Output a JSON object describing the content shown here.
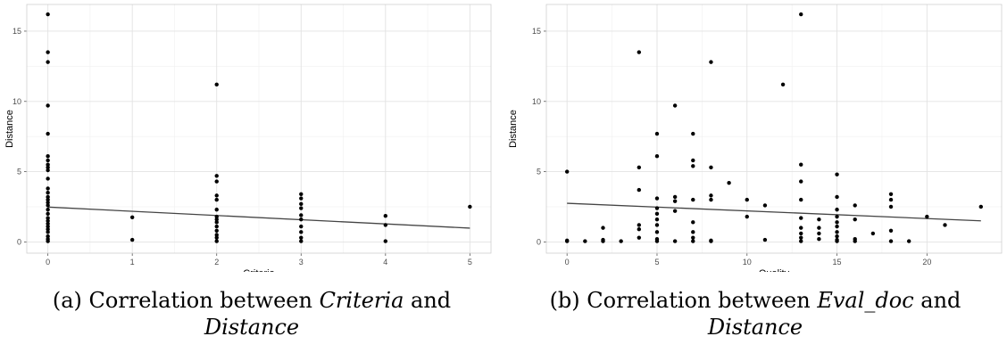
{
  "chart_data": [
    {
      "type": "scatter",
      "id": "a",
      "xlabel": "Criteria",
      "ylabel": "Distance",
      "xlim": [
        -0.25,
        5.25
      ],
      "ylim": [
        -0.8,
        16.9
      ],
      "xticks": [
        0,
        1,
        2,
        3,
        4,
        5
      ],
      "yticks": [
        0,
        5,
        10,
        15
      ],
      "grid": true,
      "points": [
        [
          0,
          16.2
        ],
        [
          0,
          13.5
        ],
        [
          0,
          12.8
        ],
        [
          0,
          9.7
        ],
        [
          0,
          7.7
        ],
        [
          0,
          6.1
        ],
        [
          0,
          5.8
        ],
        [
          0,
          5.5
        ],
        [
          0,
          5.3
        ],
        [
          0,
          5.1
        ],
        [
          0,
          4.5
        ],
        [
          0,
          3.8
        ],
        [
          0,
          3.5
        ],
        [
          0,
          3.2
        ],
        [
          0,
          3.0
        ],
        [
          0,
          2.8
        ],
        [
          0,
          2.6
        ],
        [
          0,
          2.3
        ],
        [
          0,
          2.0
        ],
        [
          0,
          1.7
        ],
        [
          0,
          1.5
        ],
        [
          0,
          1.3
        ],
        [
          0,
          1.1
        ],
        [
          0,
          0.9
        ],
        [
          0,
          0.7
        ],
        [
          0,
          0.4
        ],
        [
          0,
          0.2
        ],
        [
          0,
          0.05
        ],
        [
          1,
          1.75
        ],
        [
          1,
          0.15
        ],
        [
          2,
          11.2
        ],
        [
          2,
          4.7
        ],
        [
          2,
          4.3
        ],
        [
          2,
          3.3
        ],
        [
          2,
          3.0
        ],
        [
          2,
          2.3
        ],
        [
          2,
          1.8
        ],
        [
          2,
          1.6
        ],
        [
          2,
          1.4
        ],
        [
          2,
          1.1
        ],
        [
          2,
          0.8
        ],
        [
          2,
          0.5
        ],
        [
          2,
          0.3
        ],
        [
          2,
          0.05
        ],
        [
          3,
          3.4
        ],
        [
          3,
          3.1
        ],
        [
          3,
          2.7
        ],
        [
          3,
          2.4
        ],
        [
          3,
          1.9
        ],
        [
          3,
          1.6
        ],
        [
          3,
          1.1
        ],
        [
          3,
          0.7
        ],
        [
          3,
          0.3
        ],
        [
          3,
          0.05
        ],
        [
          4,
          1.85
        ],
        [
          4,
          1.2
        ],
        [
          4,
          0.05
        ],
        [
          5,
          2.5
        ]
      ],
      "trend": {
        "x": [
          0,
          5
        ],
        "y": [
          2.48,
          0.98
        ]
      }
    },
    {
      "type": "scatter",
      "id": "b",
      "xlabel": "Quality",
      "ylabel": "Distance",
      "xlim": [
        -1.15,
        24.15
      ],
      "ylim": [
        -0.8,
        16.9
      ],
      "xticks": [
        0,
        5,
        10,
        15,
        20
      ],
      "yticks": [
        0,
        5,
        10,
        15
      ],
      "grid": true,
      "points": [
        [
          0,
          5.0
        ],
        [
          0,
          0.1
        ],
        [
          0,
          0.05
        ],
        [
          1,
          0.05
        ],
        [
          2,
          1.0
        ],
        [
          2,
          0.15
        ],
        [
          2,
          0.05
        ],
        [
          3,
          0.05
        ],
        [
          4,
          13.5
        ],
        [
          4,
          5.3
        ],
        [
          4,
          3.7
        ],
        [
          4,
          1.2
        ],
        [
          4,
          0.9
        ],
        [
          4,
          0.3
        ],
        [
          5,
          7.7
        ],
        [
          5,
          6.1
        ],
        [
          5,
          3.1
        ],
        [
          5,
          2.4
        ],
        [
          5,
          2.0
        ],
        [
          5,
          1.6
        ],
        [
          5,
          1.2
        ],
        [
          5,
          0.7
        ],
        [
          5,
          0.2
        ],
        [
          5,
          0.05
        ],
        [
          6,
          9.7
        ],
        [
          6,
          3.2
        ],
        [
          6,
          2.9
        ],
        [
          6,
          2.2
        ],
        [
          6,
          0.05
        ],
        [
          7,
          7.7
        ],
        [
          7,
          5.8
        ],
        [
          7,
          5.4
        ],
        [
          7,
          3.0
        ],
        [
          7,
          1.4
        ],
        [
          7,
          0.7
        ],
        [
          7,
          0.3
        ],
        [
          7,
          0.05
        ],
        [
          8,
          12.8
        ],
        [
          8,
          5.3
        ],
        [
          8,
          3.3
        ],
        [
          8,
          3.0
        ],
        [
          8,
          0.1
        ],
        [
          8,
          0.05
        ],
        [
          9,
          4.2
        ],
        [
          10,
          3.0
        ],
        [
          10,
          1.8
        ],
        [
          11,
          2.6
        ],
        [
          11,
          0.15
        ],
        [
          12,
          11.2
        ],
        [
          13,
          16.2
        ],
        [
          13,
          5.5
        ],
        [
          13,
          4.3
        ],
        [
          13,
          3.0
        ],
        [
          13,
          1.7
        ],
        [
          13,
          1.0
        ],
        [
          13,
          0.6
        ],
        [
          13,
          0.3
        ],
        [
          13,
          0.05
        ],
        [
          14,
          1.6
        ],
        [
          14,
          1.0
        ],
        [
          14,
          0.6
        ],
        [
          14,
          0.2
        ],
        [
          15,
          4.8
        ],
        [
          15,
          3.2
        ],
        [
          15,
          2.3
        ],
        [
          15,
          1.8
        ],
        [
          15,
          1.4
        ],
        [
          15,
          1.1
        ],
        [
          15,
          0.7
        ],
        [
          15,
          0.4
        ],
        [
          15,
          0.15
        ],
        [
          15,
          0.05
        ],
        [
          16,
          2.6
        ],
        [
          16,
          1.6
        ],
        [
          16,
          0.2
        ],
        [
          16,
          0.05
        ],
        [
          17,
          0.6
        ],
        [
          18,
          3.4
        ],
        [
          18,
          3.0
        ],
        [
          18,
          2.5
        ],
        [
          18,
          0.8
        ],
        [
          18,
          0.05
        ],
        [
          19,
          0.05
        ],
        [
          20,
          1.8
        ],
        [
          21,
          1.2
        ],
        [
          23,
          2.5
        ]
      ],
      "trend": {
        "x": [
          0,
          23
        ],
        "y": [
          2.75,
          1.5
        ]
      }
    }
  ],
  "captions": {
    "a": {
      "prefix": "(a) Correlation between ",
      "term1": "Criteria",
      "mid": " and",
      "term2": "Distance"
    },
    "b": {
      "prefix": "(b) Correlation between ",
      "term1": "Eval_doc",
      "mid": " and",
      "term2": "Distance"
    }
  }
}
